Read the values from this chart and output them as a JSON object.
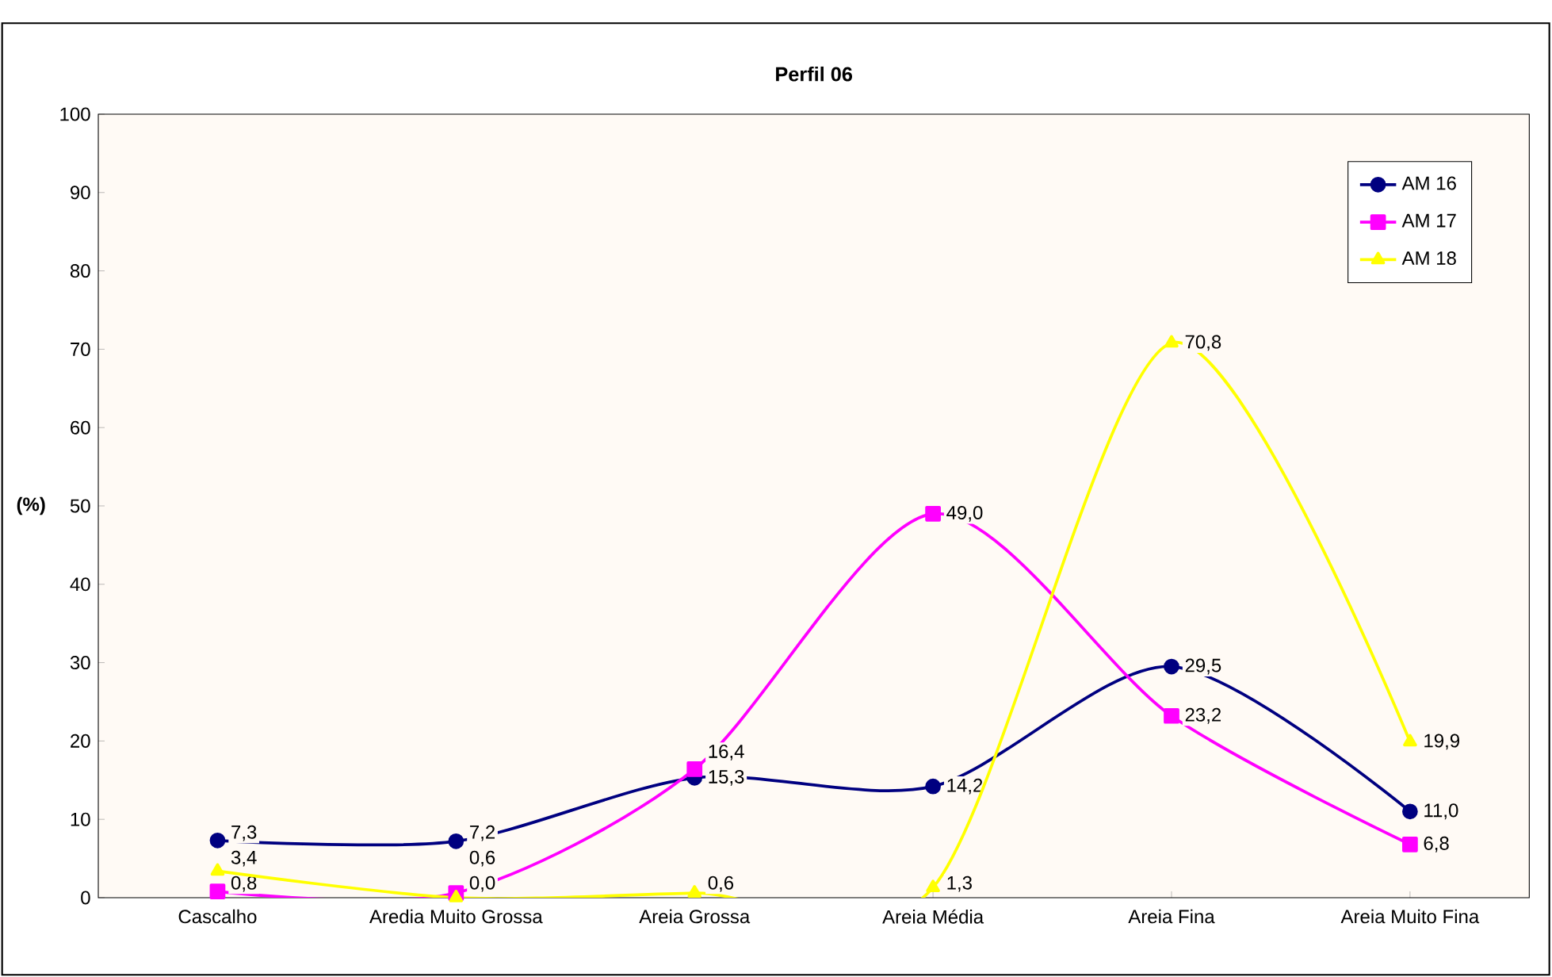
{
  "chart_data": {
    "type": "line",
    "title": "Perfil 06",
    "ylabel": "(%)",
    "categories": [
      "Cascalho",
      "Aredia Muito Grossa",
      "Areia Grossa",
      "Areia Média",
      "Areia Fina",
      "Areia Muito Fina"
    ],
    "ylim": [
      0,
      100
    ],
    "yticks": [
      0,
      10,
      20,
      30,
      40,
      50,
      60,
      70,
      80,
      90,
      100
    ],
    "grid": false,
    "legend": "top right",
    "series": [
      {
        "name": "AM 16",
        "color": "#000080",
        "marker": "circle",
        "values": [
          7.3,
          7.2,
          15.3,
          14.2,
          29.5,
          11.0
        ],
        "value_labels": [
          "7,3",
          "7,2",
          "15,3",
          "14,2",
          "29,5",
          "11,0"
        ]
      },
      {
        "name": "AM 17",
        "color": "#ff00ff",
        "marker": "square",
        "values": [
          0.8,
          0.6,
          16.4,
          49.0,
          23.2,
          6.8
        ],
        "value_labels": [
          "0,8",
          "0,6",
          "16,4",
          "49,0",
          "23,2",
          "6,8"
        ]
      },
      {
        "name": "AM 18",
        "color": "#ffff00",
        "marker": "triangle",
        "values": [
          3.4,
          0.0,
          0.6,
          1.3,
          70.8,
          19.9
        ],
        "value_labels": [
          "3,4",
          "0,0",
          "0,6",
          "1,3",
          "70,8",
          "19,9"
        ]
      }
    ]
  }
}
